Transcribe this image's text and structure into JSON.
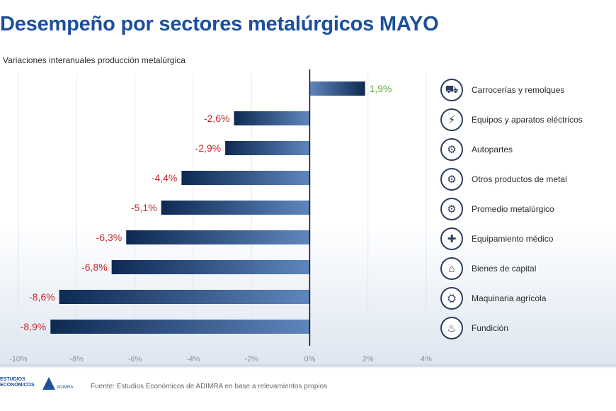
{
  "header": {
    "title": "Desempeño por sectores metalúrgicos MAYO"
  },
  "chart_data": {
    "type": "bar",
    "orientation": "horizontal",
    "subtitle": "Variaciones interanuales producción metalúrgica",
    "categories": [
      "Carrocerías y remolques",
      "Equipos y aparatos eléctricos",
      "Autopartes",
      "Otros productos de metal",
      "Promedio metalúrgico",
      "Equipamiento médico",
      "Bienes de capital",
      "Maquinaria agrícola",
      "Fundición"
    ],
    "values": [
      1.9,
      -2.6,
      -2.9,
      -4.4,
      -5.1,
      -6.3,
      -6.8,
      -8.6,
      -8.9
    ],
    "data_labels": [
      "1,9%",
      "-2,6%",
      "-2,9%",
      "-4,4%",
      "-5,1%",
      "-6,3%",
      "-6,8%",
      "-8,6%",
      "-8,9%"
    ],
    "xlim": [
      -10,
      4
    ],
    "x_ticks": [
      -10,
      -8,
      -6,
      -4,
      -2,
      0,
      2,
      4
    ],
    "x_tick_labels": [
      "-10%",
      "-8%",
      "-6%",
      "-4%",
      "-2%",
      "0%",
      "2%",
      "4%"
    ],
    "grid": true,
    "legend_position": "right",
    "colors": {
      "bar_dark": "#0d2a52",
      "bar_light": "#5f86bd",
      "positive_label": "#5aae3a",
      "negative_label": "#c8282c",
      "title": "#1d4f9c"
    }
  },
  "legend": {
    "items": [
      {
        "label": "Carrocerías y remolques",
        "icon": "truck-icon",
        "glyph": "⛟"
      },
      {
        "label": "Equipos y aparatos eléctricos",
        "icon": "electric-equipment-icon",
        "glyph": "⚡"
      },
      {
        "label": "Autopartes",
        "icon": "autoparts-icon",
        "glyph": "⚙"
      },
      {
        "label": "Otros productos de metal",
        "icon": "metal-products-icon",
        "glyph": "⚙"
      },
      {
        "label": "Promedio metalúrgico",
        "icon": "metallurgy-average-icon",
        "glyph": "⚙"
      },
      {
        "label": "Equipamiento médico",
        "icon": "medical-equipment-icon",
        "glyph": "✚"
      },
      {
        "label": "Bienes de capital",
        "icon": "capital-goods-icon",
        "glyph": "⌂"
      },
      {
        "label": "Maquinaria agrícola",
        "icon": "tractor-icon",
        "glyph": "⛭"
      },
      {
        "label": "Fundición",
        "icon": "foundry-icon",
        "glyph": "♨"
      }
    ]
  },
  "footer": {
    "logo_left_text": "ESTUDIOS ECONÓMICOS",
    "logo_right_text": "ADIMRA",
    "source": "Fuente: Estudios Económicos de ADIMRA en base a relevamientos propios"
  }
}
